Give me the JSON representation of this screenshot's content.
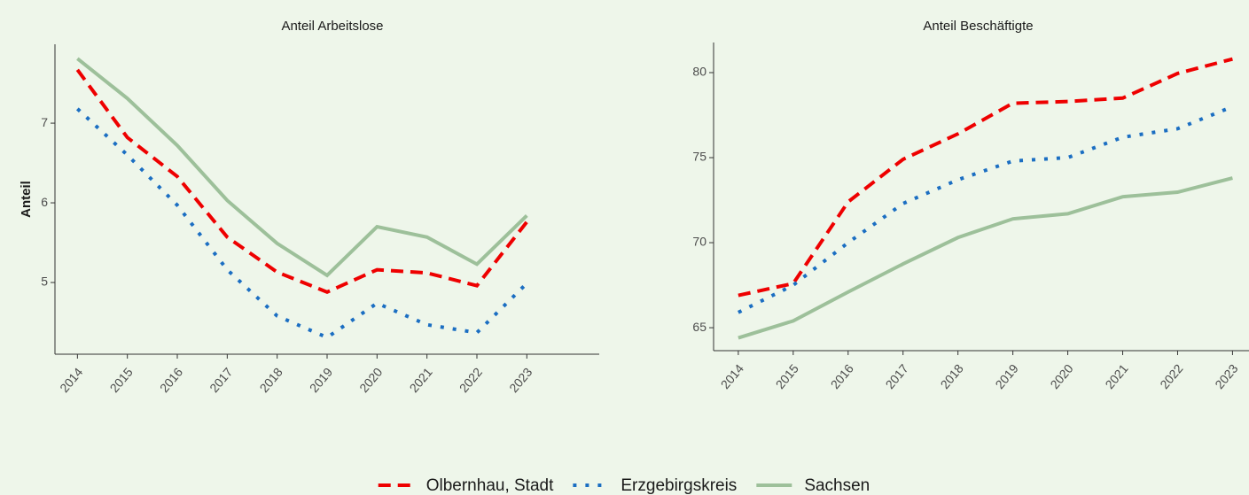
{
  "chart_data": [
    {
      "type": "line",
      "title": "Anteil Arbeitslose",
      "y_label": "Anteil",
      "x": [
        2014,
        2015,
        2016,
        2017,
        2018,
        2019,
        2020,
        2021,
        2022,
        2023
      ],
      "xlim": [
        2013.55,
        2024.45
      ],
      "xticks": [
        2014,
        2015,
        2016,
        2017,
        2018,
        2019,
        2020,
        2021,
        2022,
        2023
      ],
      "ylim": [
        4.1,
        7.99
      ],
      "yticks": [
        5,
        6,
        7
      ],
      "series": [
        {
          "name": "Olbernhau, Stadt",
          "color": "#ee0000",
          "style": "dashed",
          "values": [
            7.67,
            6.82,
            6.33,
            5.57,
            5.13,
            4.88,
            5.16,
            5.12,
            4.96,
            5.76
          ]
        },
        {
          "name": "Erzgebirgskreis",
          "color": "#1b6ec2",
          "style": "dotted",
          "values": [
            7.18,
            6.6,
            5.97,
            5.16,
            4.58,
            4.31,
            4.74,
            4.47,
            4.37,
            4.99
          ]
        },
        {
          "name": "Sachsen",
          "color": "#9dc09a",
          "style": "solid",
          "values": [
            7.81,
            7.31,
            6.72,
            6.03,
            5.49,
            5.09,
            5.7,
            5.57,
            5.23,
            5.84
          ]
        }
      ]
    },
    {
      "type": "line",
      "title": "Anteil Beschäftigte",
      "x": [
        2014,
        2015,
        2016,
        2017,
        2018,
        2019,
        2020,
        2021,
        2022,
        2023
      ],
      "xlim": [
        2013.55,
        2023.3
      ],
      "xticks": [
        2014,
        2015,
        2016,
        2017,
        2018,
        2019,
        2020,
        2021,
        2022,
        2023
      ],
      "ylim": [
        63.65,
        81.77
      ],
      "yticks": [
        65,
        70,
        75,
        80
      ],
      "series": [
        {
          "name": "Olbernhau, Stadt",
          "color": "#ee0000",
          "style": "dashed",
          "values": [
            66.9,
            67.6,
            72.4,
            74.9,
            76.4,
            78.2,
            78.3,
            78.5,
            79.95,
            80.8
          ]
        },
        {
          "name": "Erzgebirgskreis",
          "color": "#1b6ec2",
          "style": "dotted",
          "values": [
            65.9,
            67.5,
            70.0,
            72.3,
            73.7,
            74.8,
            75.0,
            76.2,
            76.7,
            78.0
          ]
        },
        {
          "name": "Sachsen",
          "color": "#9dc09a",
          "style": "solid",
          "values": [
            64.4,
            65.4,
            67.1,
            68.75,
            70.3,
            71.4,
            71.7,
            72.7,
            72.97,
            73.8
          ]
        }
      ]
    }
  ]
}
